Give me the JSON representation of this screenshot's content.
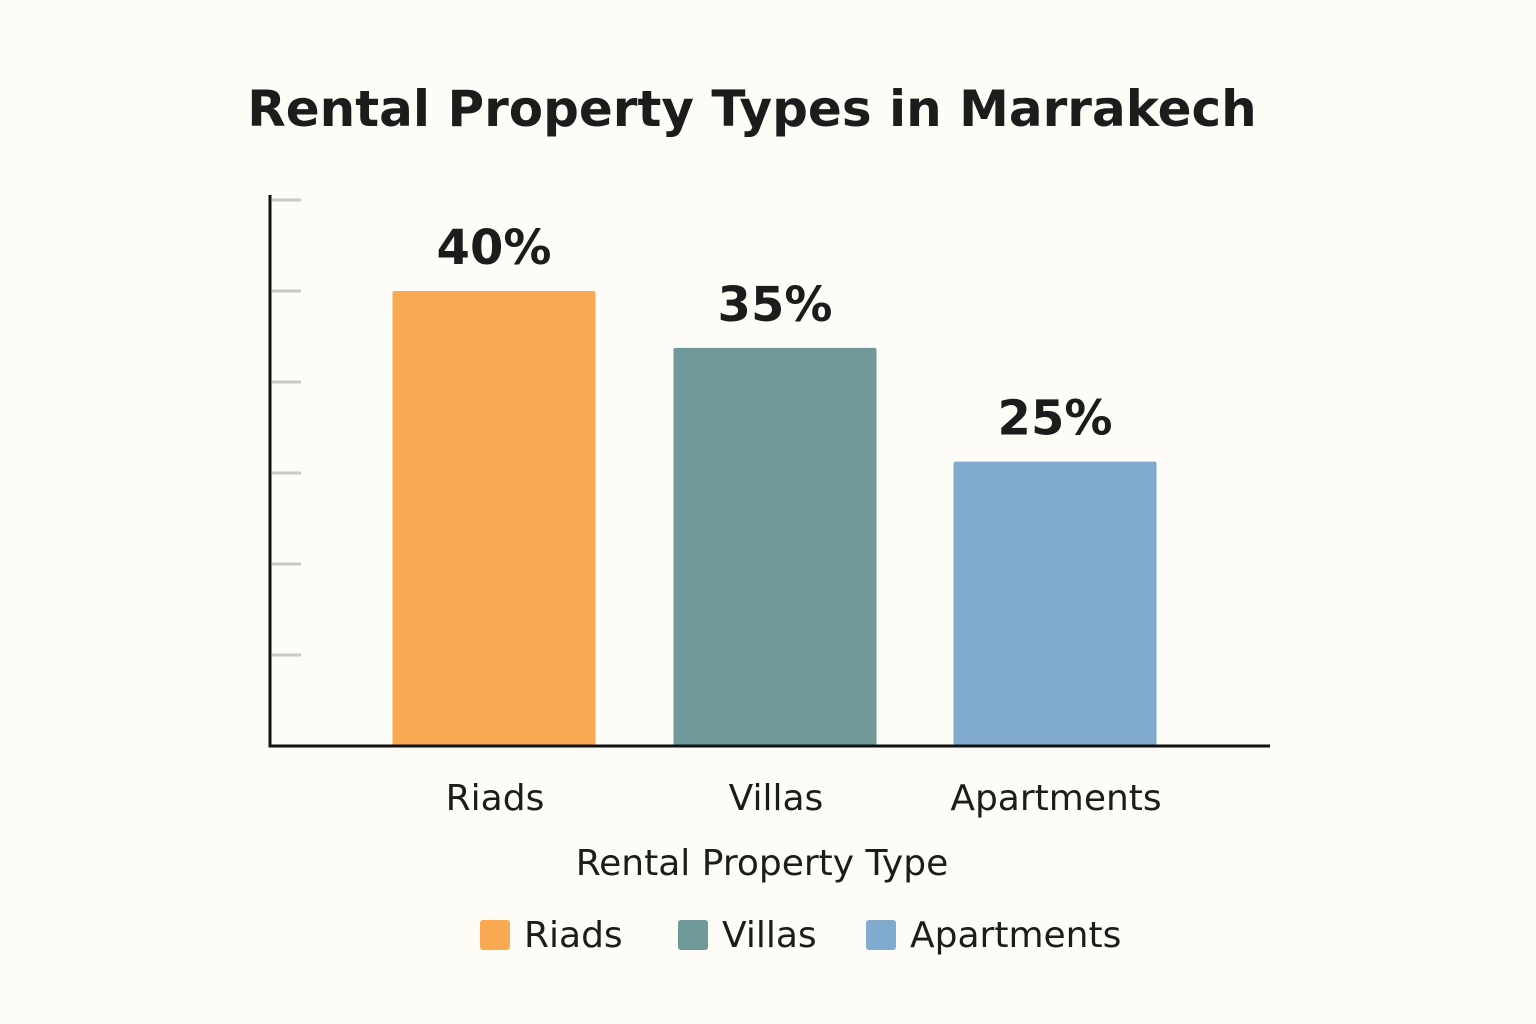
{
  "chart_data": {
    "type": "bar",
    "title": "Rental Property Types in Marrakech",
    "xlabel": "Rental Property Type",
    "ylabel": "",
    "categories": [
      "Riads",
      "Villas",
      "Apartments"
    ],
    "values": [
      40,
      35,
      25
    ],
    "value_labels": [
      "40%",
      "35%",
      "25%"
    ],
    "unit": "%",
    "legend": [
      {
        "label": "Riads",
        "color": "#f9aa53"
      },
      {
        "label": "Villas",
        "color": "#6f9a99"
      },
      {
        "label": "Apartments",
        "color": "#80abce"
      }
    ],
    "legend_position": "bottom",
    "ylim": [
      0,
      48
    ],
    "yticks": [
      8,
      16,
      24,
      32,
      40,
      48
    ],
    "show_ytick_labels": false,
    "grid": false
  }
}
